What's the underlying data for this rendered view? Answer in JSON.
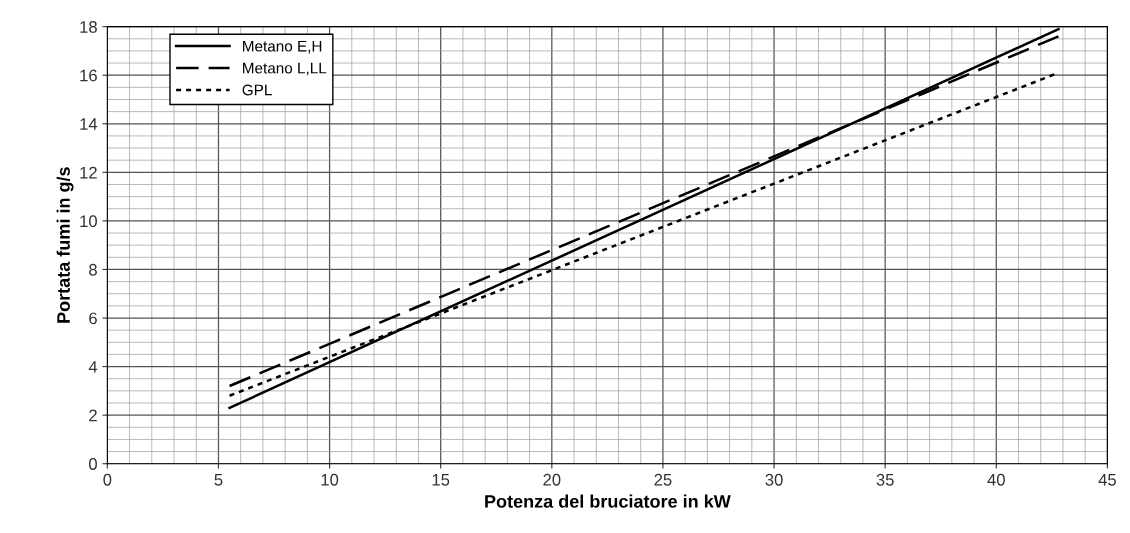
{
  "chart_data": {
    "type": "line",
    "xlabel": "Potenza del bruciatore in kW",
    "ylabel": "Portata fumi in g/s",
    "xlim": [
      0,
      45
    ],
    "ylim": [
      0,
      18
    ],
    "xticks": [
      0,
      5,
      10,
      15,
      20,
      25,
      30,
      35,
      40,
      45
    ],
    "yticks": [
      0,
      2,
      4,
      6,
      8,
      10,
      12,
      14,
      16,
      18
    ],
    "grid": true,
    "legend": "top left",
    "x": [
      5.5,
      42.8
    ],
    "series": [
      {
        "name": "Metano E,H",
        "color": "#000000",
        "line_style": "solid",
        "values": [
          2.3,
          17.9
        ]
      },
      {
        "name": "Metano L,LL",
        "color": "#000000",
        "line_style": "dashed",
        "values": [
          3.2,
          17.6
        ]
      },
      {
        "name": "GPL",
        "color": "#000000",
        "line_style": "dotted",
        "values": [
          2.8,
          16.1
        ]
      }
    ]
  }
}
